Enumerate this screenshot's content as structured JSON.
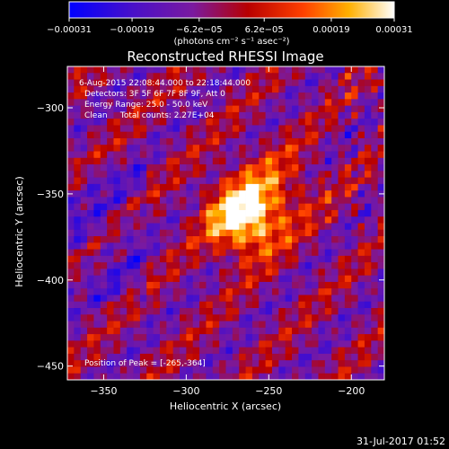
{
  "colorbar": {
    "ticks": [
      "-0.00031",
      "-0.00019",
      "-6.2e-05",
      "6.2e-05",
      "0.00019",
      "0.00031"
    ],
    "tick_values": [
      -0.00031,
      -0.00019,
      -6.2e-05,
      6.2e-05,
      0.00019,
      0.00031
    ],
    "range": [
      -0.00031,
      0.00031
    ],
    "units_label": "(photons cm⁻² s⁻¹ asec⁻²)"
  },
  "chart_data": {
    "type": "heatmap",
    "title": "Reconstructed RHESSI Image",
    "xlabel": "Heliocentric X (arcsec)",
    "ylabel": "Heliocentric Y (arcsec)",
    "xlim": [
      -372,
      -180
    ],
    "ylim": [
      -458,
      -276
    ],
    "xticks": [
      -350,
      -300,
      -250,
      -200
    ],
    "xtick_labels": [
      "-350",
      "-300",
      "-250",
      "-200"
    ],
    "yticks": [
      -300,
      -350,
      -400,
      -450
    ],
    "ytick_labels": [
      "-300",
      "-350",
      "-400",
      "-450"
    ],
    "grid": false,
    "annotations": [
      "6-Aug-2015 22:08:44.000 to 22:18:44.000",
      "Detectors: 3F 5F 6F 7F 8F 9F, Att 0",
      "Energy Range: 25.0 - 50.0 keV",
      "Clean     Total counts: 2.27E+04"
    ],
    "peak_label": "Position of Peak = [-265,-364]",
    "peak": [
      -265,
      -364
    ],
    "total_counts": 22700
  },
  "timestamp": "31-Jul-2017 01:52",
  "colors": {
    "background": "#000000",
    "text": "#ffffff",
    "colormap": [
      "#0000ff",
      "#8a2be2",
      "#cc0000",
      "#ff6600",
      "#ffdd00",
      "#ffffff"
    ]
  }
}
